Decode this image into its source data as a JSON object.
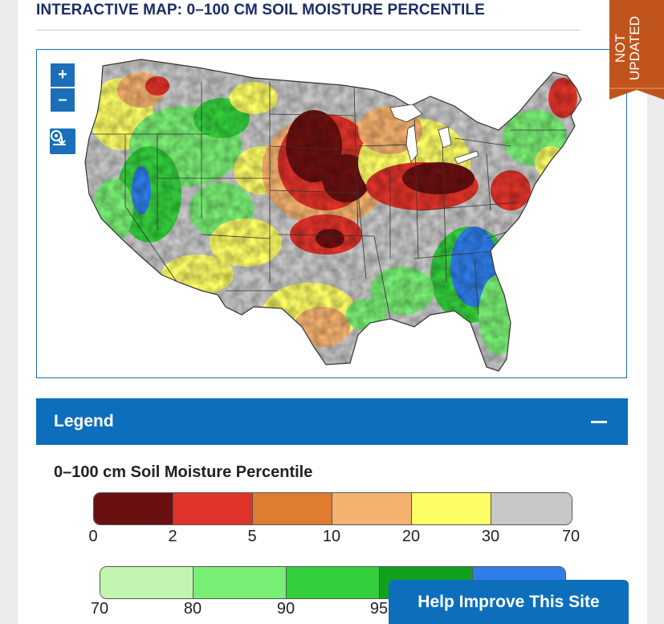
{
  "page": {
    "title": "INTERACTIVE MAP: 0–100 CM SOIL MOISTURE PERCENTILE"
  },
  "map": {
    "zoom_in_label": "+",
    "zoom_out_label": "–",
    "export_icon": "download-image-icon",
    "region": "Contiguous United States"
  },
  "ribbon": {
    "text": "NOT UPDATED",
    "color": "#c0541c"
  },
  "legend": {
    "header": "Legend",
    "collapse_icon": "minus-icon",
    "scale_title": "0–100 cm Soil Moisture Percentile",
    "dry_scale": {
      "colors": [
        "#6b1010",
        "#e0332a",
        "#e07c30",
        "#f5b26f",
        "#fdfd66",
        "#c8c8c8"
      ],
      "labels": [
        "0",
        "2",
        "5",
        "10",
        "20",
        "30",
        "70"
      ]
    },
    "wet_scale": {
      "colors": [
        "#c2f5b0",
        "#79ee74",
        "#34cf3c",
        "#11a11e",
        "#2f7de8"
      ],
      "labels": [
        "70",
        "80",
        "90",
        "95"
      ]
    }
  },
  "feedback": {
    "label": "Help Improve This Site"
  }
}
